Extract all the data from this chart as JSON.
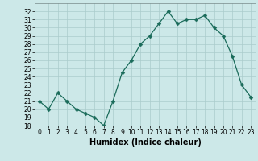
{
  "x": [
    0,
    1,
    2,
    3,
    4,
    5,
    6,
    7,
    8,
    9,
    10,
    11,
    12,
    13,
    14,
    15,
    16,
    17,
    18,
    19,
    20,
    21,
    22,
    23
  ],
  "y": [
    21,
    20,
    22,
    21,
    20,
    19.5,
    19,
    18,
    21,
    24.5,
    26,
    28,
    29,
    30.5,
    32,
    30.5,
    31,
    31,
    31.5,
    30,
    29,
    26.5,
    23,
    21.5
  ],
  "line_color": "#1a6b5a",
  "marker": "D",
  "marker_size": 2.5,
  "bg_color": "#cce8e8",
  "grid_color": "#aacccc",
  "xlabel": "Humidex (Indice chaleur)",
  "ylabel": "",
  "ylim": [
    18,
    33
  ],
  "xlim": [
    -0.5,
    23.5
  ],
  "yticks": [
    18,
    19,
    20,
    21,
    22,
    23,
    24,
    25,
    26,
    27,
    28,
    29,
    30,
    31,
    32
  ],
  "xticks": [
    0,
    1,
    2,
    3,
    4,
    5,
    6,
    7,
    8,
    9,
    10,
    11,
    12,
    13,
    14,
    15,
    16,
    17,
    18,
    19,
    20,
    21,
    22,
    23
  ],
  "tick_fontsize": 5.5,
  "label_fontsize": 7
}
